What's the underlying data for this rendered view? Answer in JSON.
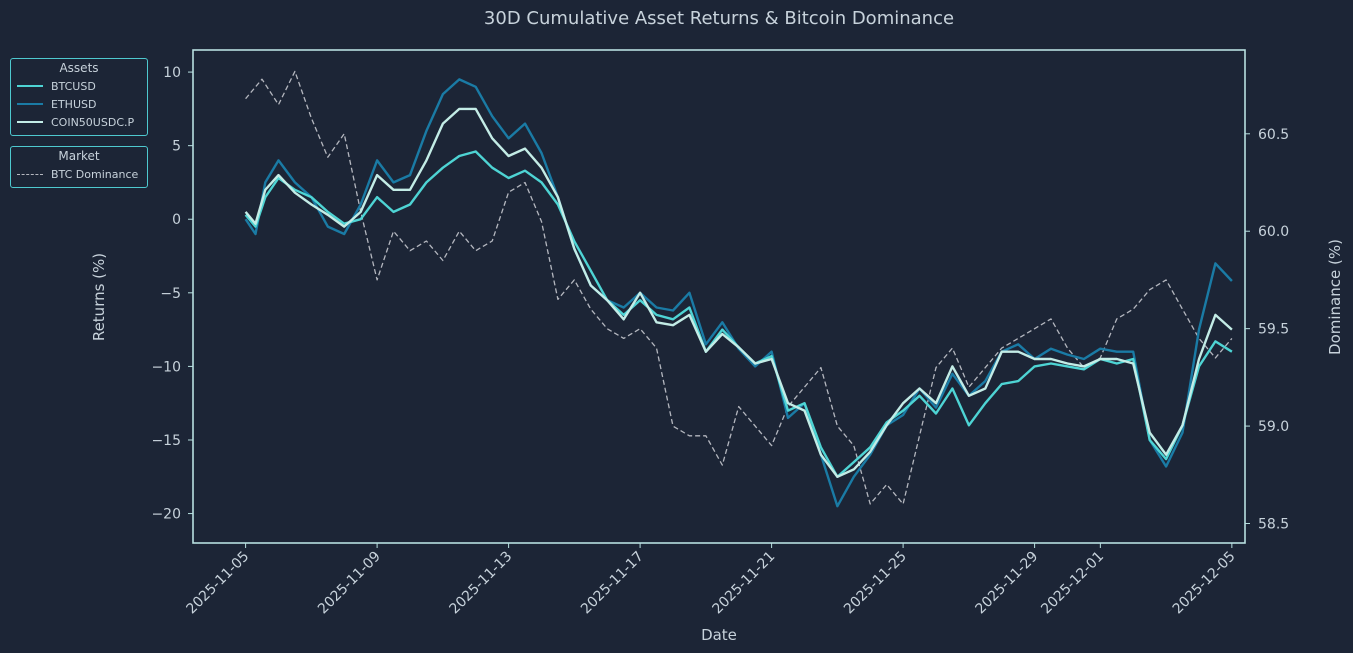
{
  "chart_data": {
    "type": "line",
    "title": "30D Cumulative Asset Returns & Bitcoin Dominance",
    "xlabel": "Date",
    "ylabel_left": "Returns (%)",
    "ylabel_right": "Dominance (%)",
    "x_ticks": [
      "2025-11-05",
      "2025-11-09",
      "2025-11-13",
      "2025-11-17",
      "2025-11-21",
      "2025-11-25",
      "2025-11-29",
      "2025-12-01",
      "2025-12-05"
    ],
    "y_left_ticks": [
      "10",
      "5",
      "0",
      "−5",
      "−10",
      "−15",
      "−20"
    ],
    "y_right_ticks": [
      "60.5",
      "60.0",
      "59.5",
      "59.0",
      "58.5"
    ],
    "ylim_left": [
      -22,
      11.5
    ],
    "ylim_right": [
      58.4,
      60.93
    ],
    "x_day_range": [
      -1.6,
      30.4
    ],
    "legends": [
      {
        "title": "Assets",
        "placement": "left-outside-top",
        "entries": [
          "BTCUSD",
          "ETHUSD",
          "COIN50USDC.P"
        ]
      },
      {
        "title": "Market",
        "placement": "left-outside",
        "entries": [
          "BTC Dominance"
        ]
      }
    ],
    "series": [
      {
        "name": "BTCUSD",
        "axis": "left",
        "color": "#4ed4d4",
        "x": [
          0,
          0.3,
          0.6,
          1,
          1.5,
          2,
          2.5,
          3,
          3.5,
          4,
          4.5,
          5,
          5.5,
          6,
          6.5,
          7,
          7.5,
          8,
          8.5,
          9,
          9.5,
          10,
          10.5,
          11,
          11.5,
          12,
          12.5,
          13,
          13.5,
          14,
          14.5,
          15,
          15.5,
          16,
          16.5,
          17,
          17.5,
          18,
          18.5,
          19,
          19.5,
          20,
          20.5,
          21,
          21.5,
          22,
          22.5,
          23,
          23.5,
          24,
          24.5,
          25,
          25.5,
          26,
          26.5,
          27,
          27.5,
          28,
          28.5,
          29,
          29.5,
          30
        ],
        "y": [
          0.3,
          -0.5,
          1.5,
          2.8,
          2,
          1.5,
          0.5,
          -0.3,
          0,
          1.5,
          0.5,
          1,
          2.5,
          3.5,
          4.3,
          4.6,
          3.5,
          2.8,
          3.3,
          2.5,
          1,
          -1.5,
          -3.5,
          -5.5,
          -6.5,
          -5.5,
          -6.5,
          -6.8,
          -6,
          -9,
          -7.5,
          -8.7,
          -9.8,
          -9.3,
          -13,
          -12.5,
          -15.5,
          -17.5,
          -16.5,
          -15.5,
          -13.8,
          -13,
          -12,
          -13.2,
          -11.5,
          -14,
          -12.5,
          -11.2,
          -11,
          -10,
          -9.8,
          -10,
          -10.2,
          -9.5,
          -9.8,
          -9.5,
          -15,
          -16.3,
          -14,
          -10,
          -8.3,
          -9
        ]
      },
      {
        "name": "ETHUSD",
        "axis": "left",
        "color": "#1a7ba5",
        "x": [
          0,
          0.3,
          0.6,
          1,
          1.5,
          2,
          2.5,
          3,
          3.5,
          4,
          4.5,
          5,
          5.5,
          6,
          6.5,
          7,
          7.5,
          8,
          8.5,
          9,
          9.5,
          10,
          10.5,
          11,
          11.5,
          12,
          12.5,
          13,
          13.5,
          14,
          14.5,
          15,
          15.5,
          16,
          16.5,
          17,
          17.5,
          18,
          18.5,
          19,
          19.5,
          20,
          20.5,
          21,
          21.5,
          22,
          22.5,
          23,
          23.5,
          24,
          24.5,
          25,
          25.5,
          26,
          26.5,
          27,
          27.5,
          28,
          28.5,
          29,
          29.5,
          30
        ],
        "y": [
          0,
          -1,
          2.5,
          4,
          2.5,
          1.5,
          -0.5,
          -1,
          1,
          4,
          2.5,
          3,
          6,
          8.5,
          9.5,
          9,
          7,
          5.5,
          6.5,
          4.5,
          1.5,
          -2,
          -4.5,
          -5.5,
          -6,
          -5,
          -6,
          -6.2,
          -5,
          -8.5,
          -7,
          -8.8,
          -10,
          -9,
          -13.5,
          -12.5,
          -16,
          -19.5,
          -17.5,
          -16,
          -14,
          -13.3,
          -11.5,
          -12.8,
          -10.5,
          -12,
          -11,
          -9,
          -8.5,
          -9.5,
          -8.8,
          -9.2,
          -9.5,
          -8.8,
          -9,
          -9,
          -15,
          -16.8,
          -14.5,
          -7.5,
          -3,
          -4.2
        ]
      },
      {
        "name": "COIN50USDC.P",
        "axis": "left",
        "color": "#c3ece6",
        "x": [
          0,
          0.3,
          0.6,
          1,
          1.5,
          2,
          2.5,
          3,
          3.5,
          4,
          4.5,
          5,
          5.5,
          6,
          6.5,
          7,
          7.5,
          8,
          8.5,
          9,
          9.5,
          10,
          10.5,
          11,
          11.5,
          12,
          12.5,
          13,
          13.5,
          14,
          14.5,
          15,
          15.5,
          16,
          16.5,
          17,
          17.5,
          18,
          18.5,
          19,
          19.5,
          20,
          20.5,
          21,
          21.5,
          22,
          22.5,
          23,
          23.5,
          24,
          24.5,
          25,
          25.5,
          26,
          26.5,
          27,
          27.5,
          28,
          28.5,
          29,
          29.5,
          30
        ],
        "y": [
          0.5,
          -0.3,
          2,
          3,
          1.8,
          1,
          0.3,
          -0.5,
          0.5,
          3,
          2,
          2,
          4,
          6.5,
          7.5,
          7.5,
          5.5,
          4.3,
          4.8,
          3.5,
          1.5,
          -2,
          -4.5,
          -5.5,
          -6.8,
          -5,
          -7,
          -7.2,
          -6.5,
          -9,
          -7.8,
          -8.7,
          -9.8,
          -9.5,
          -12.5,
          -13,
          -16,
          -17.5,
          -17,
          -15.8,
          -14,
          -12.5,
          -11.5,
          -12.5,
          -10,
          -12,
          -11.5,
          -9,
          -9,
          -9.5,
          -9.5,
          -9.8,
          -10,
          -9.5,
          -9.5,
          -9.8,
          -14.5,
          -16,
          -14,
          -9.5,
          -6.5,
          -7.5
        ]
      },
      {
        "name": "BTC Dominance",
        "axis": "right",
        "color": "#b4b7bf",
        "style": "dashed",
        "x": [
          0,
          0.5,
          1,
          1.5,
          2,
          2.5,
          3,
          3.5,
          4,
          4.5,
          5,
          5.5,
          6,
          6.5,
          7,
          7.5,
          8,
          8.5,
          9,
          9.5,
          10,
          10.5,
          11,
          11.5,
          12,
          12.5,
          13,
          13.5,
          14,
          14.5,
          15,
          15.5,
          16,
          16.5,
          17,
          17.5,
          18,
          18.5,
          19,
          19.5,
          20,
          20.5,
          21,
          21.5,
          22,
          22.5,
          23,
          23.5,
          24,
          24.5,
          25,
          25.5,
          26,
          26.5,
          27,
          27.5,
          28,
          28.5,
          29,
          29.5,
          30
        ],
        "y": [
          60.68,
          60.78,
          60.65,
          60.82,
          60.58,
          60.38,
          60.5,
          60.1,
          59.75,
          60.0,
          59.9,
          59.95,
          59.85,
          60.0,
          59.9,
          59.95,
          60.2,
          60.25,
          60.05,
          59.65,
          59.75,
          59.6,
          59.5,
          59.45,
          59.5,
          59.4,
          59.0,
          58.95,
          58.95,
          58.8,
          59.1,
          59.0,
          58.9,
          59.1,
          59.2,
          59.3,
          59.0,
          58.9,
          58.6,
          58.7,
          58.6,
          58.95,
          59.3,
          59.4,
          59.2,
          59.3,
          59.4,
          59.45,
          59.5,
          59.55,
          59.4,
          59.3,
          59.35,
          59.55,
          59.6,
          59.7,
          59.75,
          59.6,
          59.45,
          59.35,
          59.45
        ]
      }
    ]
  }
}
